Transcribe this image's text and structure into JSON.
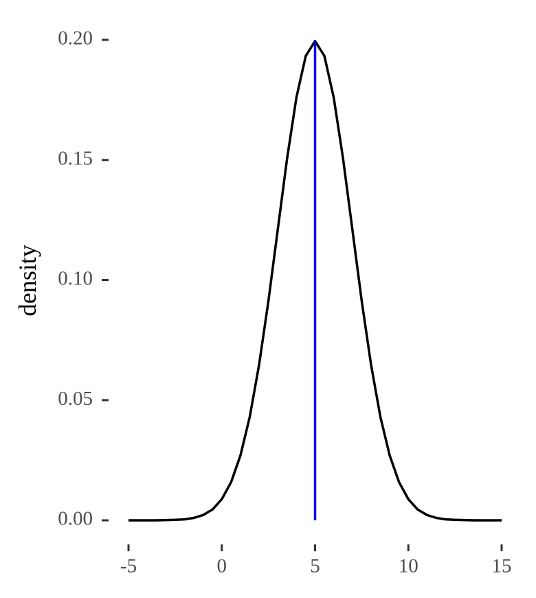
{
  "chart_data": {
    "type": "line",
    "y_label": "density",
    "x": [
      -5,
      -4.5,
      -4,
      -3.5,
      -3,
      -2.5,
      -2,
      -1.5,
      -1,
      -0.5,
      0,
      0.5,
      1,
      1.5,
      2,
      2.5,
      3,
      3.5,
      4,
      4.5,
      5,
      5.5,
      6,
      6.5,
      7,
      7.5,
      8,
      8.5,
      9,
      9.5,
      10,
      10.5,
      11,
      11.5,
      12,
      12.5,
      13,
      13.5,
      14,
      14.5,
      15
    ],
    "series": [
      {
        "color": "#000000",
        "values": [
          0.0,
          0.0,
          0.0,
          0.0,
          0.0001,
          0.0002,
          0.0004,
          0.001,
          0.0022,
          0.0045,
          0.0088,
          0.0159,
          0.027,
          0.0431,
          0.0648,
          0.0913,
          0.121,
          0.1506,
          0.176,
          0.1933,
          0.1995,
          0.1933,
          0.176,
          0.1506,
          0.121,
          0.0913,
          0.0648,
          0.0431,
          0.027,
          0.0159,
          0.0088,
          0.0045,
          0.0022,
          0.001,
          0.0004,
          0.0002,
          0.0001,
          0.0,
          0.0,
          0.0,
          0.0
        ]
      }
    ],
    "mean_line": {
      "x": 5,
      "ymax": 0.1995,
      "color": "#0000ee"
    },
    "xlim": [
      -5,
      15
    ],
    "xticks": [
      -5,
      0,
      5,
      10,
      15
    ],
    "ylim": [
      0,
      0.2
    ],
    "yticks": [
      {
        "value": 0,
        "label": "0.00"
      },
      {
        "value": 0.05,
        "label": "0.05"
      },
      {
        "value": 0.1,
        "label": "0.10"
      },
      {
        "value": 0.15,
        "label": "0.15"
      },
      {
        "value": 0.2,
        "label": "0.20"
      }
    ],
    "grid": false
  }
}
